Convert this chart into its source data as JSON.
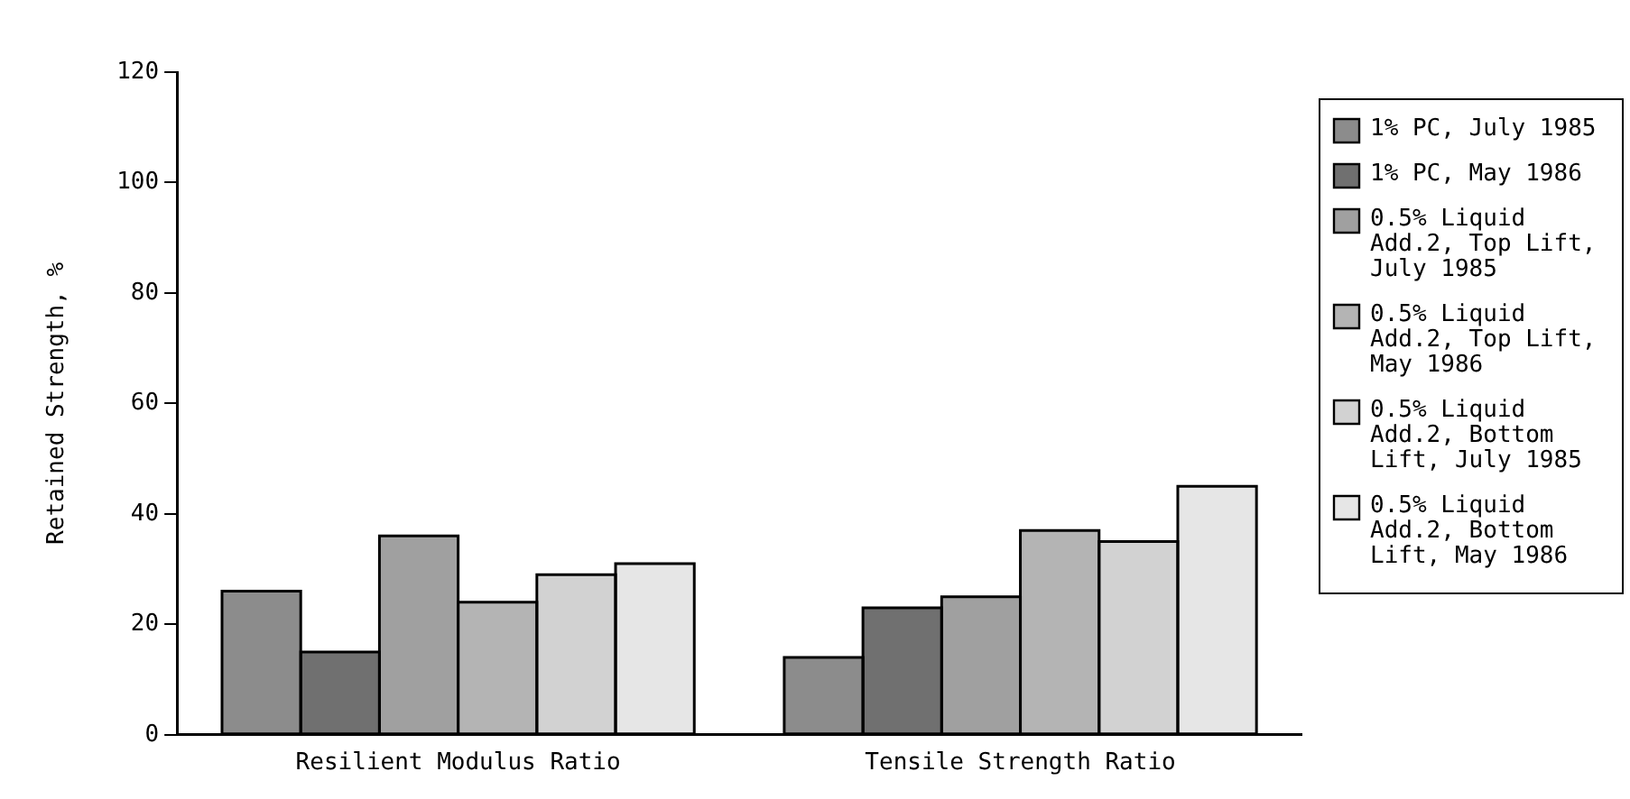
{
  "chart_data": {
    "type": "bar",
    "ylabel": "Retained Strength, %",
    "categories": [
      "Resilient Modulus Ratio",
      "Tensile Strength Ratio"
    ],
    "series": [
      {
        "name": "1% PC, July 1985",
        "color": "#8c8c8c",
        "values": [
          26,
          14
        ]
      },
      {
        "name": "1% PC, May 1986",
        "color": "#707070",
        "values": [
          15,
          23
        ]
      },
      {
        "name": "0.5% Liquid Add.2, Top Lift, July 1985",
        "color": "#a0a0a0",
        "values": [
          36,
          25
        ]
      },
      {
        "name": "0.5% Liquid Add.2, Top Lift, May 1986",
        "color": "#b4b4b4",
        "values": [
          24,
          37
        ]
      },
      {
        "name": "0.5% Liquid Add.2, Bottom Lift, July 1985",
        "color": "#d2d2d2",
        "values": [
          29,
          35
        ]
      },
      {
        "name": "0.5% Liquid Add.2, Bottom Lift, May 1986",
        "color": "#e6e6e6",
        "values": [
          31,
          45
        ]
      }
    ],
    "ylim": [
      0,
      120
    ],
    "yticks": [
      0,
      20,
      40,
      60,
      80,
      100,
      120
    ],
    "grid": false,
    "legend": "right"
  }
}
